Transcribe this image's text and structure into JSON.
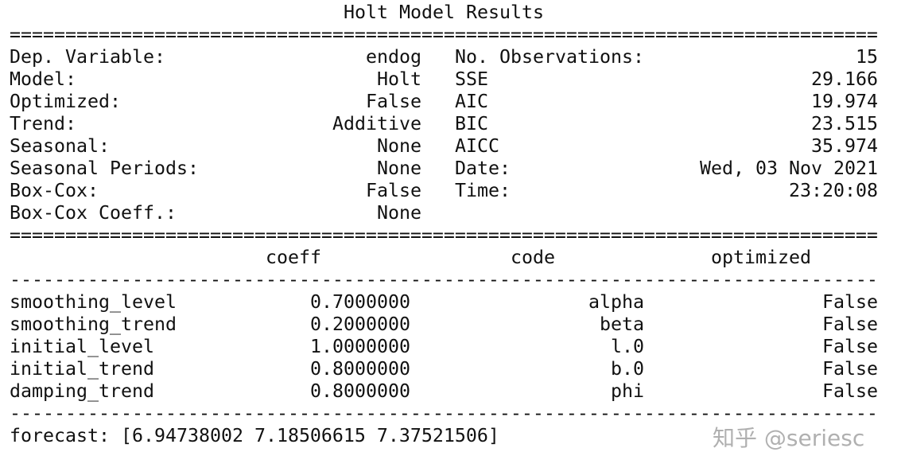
{
  "title": "Holt Model Results",
  "info_rows": [
    {
      "l_label": "Dep. Variable:",
      "l_value": "endog",
      "r_label": "No. Observations:",
      "r_value": "15"
    },
    {
      "l_label": "Model:",
      "l_value": "Holt",
      "r_label": "SSE",
      "r_value": "29.166"
    },
    {
      "l_label": "Optimized:",
      "l_value": "False",
      "r_label": "AIC",
      "r_value": "19.974"
    },
    {
      "l_label": "Trend:",
      "l_value": "Additive",
      "r_label": "BIC",
      "r_value": "23.515"
    },
    {
      "l_label": "Seasonal:",
      "l_value": "None",
      "r_label": "AICC",
      "r_value": "35.974"
    },
    {
      "l_label": "Seasonal Periods:",
      "l_value": "None",
      "r_label": "Date:",
      "r_value": "Wed, 03 Nov 2021"
    },
    {
      "l_label": "Box-Cox:",
      "l_value": "False",
      "r_label": "Time:",
      "r_value": "23:20:08"
    },
    {
      "l_label": "Box-Cox Coeff.:",
      "l_value": "None",
      "r_label": "",
      "r_value": ""
    }
  ],
  "params_header": [
    "coeff",
    "code",
    "optimized"
  ],
  "params": [
    {
      "name": "smoothing_level",
      "coeff": "0.7000000",
      "code": "alpha",
      "optimized": "False"
    },
    {
      "name": "smoothing_trend",
      "coeff": "0.2000000",
      "code": "beta",
      "optimized": "False"
    },
    {
      "name": "initial_level",
      "coeff": "1.0000000",
      "code": "l.0",
      "optimized": "False"
    },
    {
      "name": "initial_trend",
      "coeff": "0.8000000",
      "code": "b.0",
      "optimized": "False"
    },
    {
      "name": "damping_trend",
      "coeff": "0.8000000",
      "code": "phi",
      "optimized": "False"
    }
  ],
  "forecast": "forecast: [6.94738002 7.18506615 7.37521506]",
  "watermark": "知乎 @seriesc"
}
